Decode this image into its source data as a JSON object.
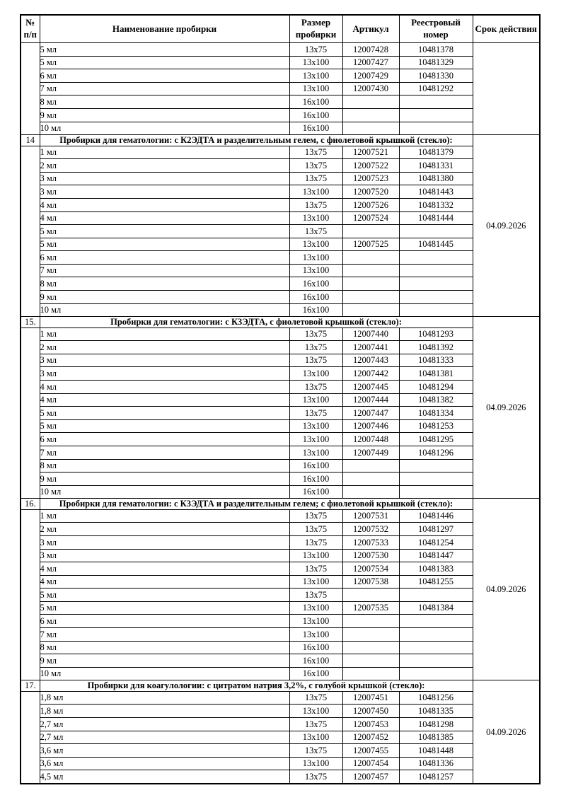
{
  "table": {
    "columns": [
      "№ п/п",
      "Наименование пробирки",
      "Размер пробирки",
      "Артикул",
      "Реестровый номер",
      "Срок действия"
    ],
    "sections": [
      {
        "number": "",
        "title": "",
        "validity": "",
        "rows": [
          [
            "5 мл",
            "13x75",
            "12007428",
            "10481378"
          ],
          [
            "5 мл",
            "13x100",
            "12007427",
            "10481329"
          ],
          [
            "6 мл",
            "13x100",
            "12007429",
            "10481330"
          ],
          [
            "7 мл",
            "13x100",
            "12007430",
            "10481292"
          ],
          [
            "8 мл",
            "16x100",
            "",
            ""
          ],
          [
            "9 мл",
            "16x100",
            "",
            ""
          ],
          [
            "10 мл",
            "16x100",
            "",
            ""
          ]
        ]
      },
      {
        "number": "14",
        "title": "Пробирки для гематологии: с К2ЭДТА и разделительным гелем, с фиолетовой крышкой (стекло):",
        "validity": "04.09.2026",
        "rows": [
          [
            "1 мл",
            "13x75",
            "12007521",
            "10481379"
          ],
          [
            "2 мл",
            "13x75",
            "12007522",
            "10481331"
          ],
          [
            "3 мл",
            "13x75",
            "12007523",
            "10481380"
          ],
          [
            "3 мл",
            "13x100",
            "12007520",
            "10481443"
          ],
          [
            "4 мл",
            "13x75",
            "12007526",
            "10481332"
          ],
          [
            "4 мл",
            "13x100",
            "12007524",
            "10481444"
          ],
          [
            "5 мл",
            "13x75",
            "",
            ""
          ],
          [
            "5 мл",
            "13x100",
            "12007525",
            "10481445"
          ],
          [
            "6 мл",
            "13x100",
            "",
            ""
          ],
          [
            "7 мл",
            "13x100",
            "",
            ""
          ],
          [
            "8 мл",
            "16x100",
            "",
            ""
          ],
          [
            "9 мл",
            "16x100",
            "",
            ""
          ],
          [
            "10 мл",
            "16x100",
            "",
            ""
          ]
        ]
      },
      {
        "number": "15.",
        "title": "Пробирки для гематологии: с К3ЭДТА, с фиолетовой крышкой (стекло):",
        "validity": "04.09.2026",
        "rows": [
          [
            "1 мл",
            "13x75",
            "12007440",
            "10481293"
          ],
          [
            "2 мл",
            "13x75",
            "12007441",
            "10481392"
          ],
          [
            "3 мл",
            "13x75",
            "12007443",
            "10481333"
          ],
          [
            "3 мл",
            "13x100",
            "12007442",
            "10481381"
          ],
          [
            "4 мл",
            "13x75",
            "12007445",
            "10481294"
          ],
          [
            "4 мл",
            "13x100",
            "12007444",
            "10481382"
          ],
          [
            "5 мл",
            "13x75",
            "12007447",
            "10481334"
          ],
          [
            "5 мл",
            "13x100",
            "12007446",
            "10481253"
          ],
          [
            "6 мл",
            "13x100",
            "12007448",
            "10481295"
          ],
          [
            "7 мл",
            "13x100",
            "12007449",
            "10481296"
          ],
          [
            "8 мл",
            "16x100",
            "",
            ""
          ],
          [
            "9 мл",
            "16x100",
            "",
            ""
          ],
          [
            "10 мл",
            "16x100",
            "",
            ""
          ]
        ]
      },
      {
        "number": "16.",
        "title": "Пробирки для гематологии: с К3ЭДТА и разделительным гелем; с фиолетовой крышкой (стекло):",
        "validity": "04.09.2026",
        "rows": [
          [
            "1 мл",
            "13x75",
            "12007531",
            "10481446"
          ],
          [
            "2 мл",
            "13x75",
            "12007532",
            "10481297"
          ],
          [
            "3 мл",
            "13x75",
            "12007533",
            "10481254"
          ],
          [
            "3 мл",
            "13x100",
            "12007530",
            "10481447"
          ],
          [
            "4 мл",
            "13x75",
            "12007534",
            "10481383"
          ],
          [
            "4 мл",
            "13x100",
            "12007538",
            "10481255"
          ],
          [
            "5 мл",
            "13x75",
            "",
            ""
          ],
          [
            "5 мл",
            "13x100",
            "12007535",
            "10481384"
          ],
          [
            "6 мл",
            "13x100",
            "",
            ""
          ],
          [
            "7 мл",
            "13x100",
            "",
            ""
          ],
          [
            "8 мл",
            "16x100",
            "",
            ""
          ],
          [
            "9 мл",
            "16x100",
            "",
            ""
          ],
          [
            "10 мл",
            "16x100",
            "",
            ""
          ]
        ]
      },
      {
        "number": "17.",
        "title": "Пробирки для коагулологии: с цитратом натрия 3,2%, с голубой крышкой (стекло):",
        "validity": "04.09.2026",
        "rows": [
          [
            "1,8 мл",
            "13x75",
            "12007451",
            "10481256"
          ],
          [
            "1,8 мл",
            "13x100",
            "12007450",
            "10481335"
          ],
          [
            "2,7 мл",
            "13x75",
            "12007453",
            "10481298"
          ],
          [
            "2,7 мл",
            "13x100",
            "12007452",
            "10481385"
          ],
          [
            "3,6 мл",
            "13x75",
            "12007455",
            "10481448"
          ],
          [
            "3,6 мл",
            "13x100",
            "12007454",
            "10481336"
          ],
          [
            "4,5 мл",
            "13x75",
            "12007457",
            "10481257"
          ]
        ]
      }
    ]
  }
}
